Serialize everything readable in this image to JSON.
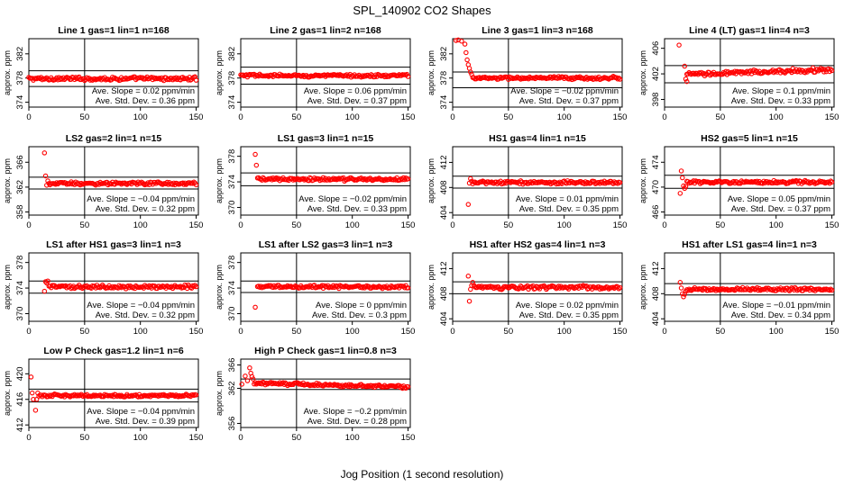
{
  "title": "SPL_140902  CO2 Shapes",
  "xlabel": "Jog Position (1 second resolution)",
  "colors": {
    "points": "#ff0000",
    "axes": "#000000"
  },
  "chart_data": [
    {
      "type": "scatter",
      "title": "Line 1 gas=1 lin=1 n=168",
      "ylabel": "approx. ppm",
      "xlim": [
        0,
        152
      ],
      "ylim": [
        373.2,
        384.5
      ],
      "yticks": [
        374,
        378,
        382
      ],
      "xticks": [
        0,
        50,
        100,
        150
      ],
      "hlines": [
        379.2,
        376.6
      ],
      "vline": 50,
      "points_from": 0,
      "points_to": 150,
      "level": 377.9,
      "noise": 0.35,
      "slope": 0,
      "outliers": [],
      "slope_text": "Ave. Slope =  0.02  ppm/min",
      "sd_text": "Ave. Std. Dev. =  0.36  ppm"
    },
    {
      "type": "scatter",
      "title": "Line 2 gas=1 lin=2 n=168",
      "ylabel": "approx. ppm",
      "xlim": [
        0,
        152
      ],
      "ylim": [
        373.2,
        384.5
      ],
      "yticks": [
        374,
        378,
        382
      ],
      "xticks": [
        0,
        50,
        100,
        150
      ],
      "hlines": [
        379.8,
        377.0
      ],
      "vline": 50,
      "points_from": 0,
      "points_to": 150,
      "level": 378.4,
      "noise": 0.3,
      "slope": 0,
      "outliers": [],
      "slope_text": "Ave. Slope =  0.06  ppm/min",
      "sd_text": "Ave. Std. Dev. =  0.37  ppm"
    },
    {
      "type": "scatter",
      "title": "Line 3 gas=1 lin=3 n=168",
      "ylabel": "approx. ppm",
      "xlim": [
        0,
        152
      ],
      "ylim": [
        373.2,
        384.5
      ],
      "yticks": [
        374,
        378,
        382
      ],
      "xticks": [
        0,
        50,
        100,
        150
      ],
      "hlines": [
        379.0,
        376.4
      ],
      "vline": 50,
      "points_from": 18,
      "points_to": 150,
      "level": 378.0,
      "noise": 0.3,
      "slope": 0,
      "outliers": [
        [
          3,
          384.2
        ],
        [
          5,
          384.3
        ],
        [
          8,
          384.1
        ],
        [
          11,
          383.6
        ],
        [
          12,
          382.2
        ],
        [
          13,
          381.0
        ],
        [
          14,
          380.2
        ],
        [
          15,
          379.6
        ],
        [
          16,
          379.0
        ],
        [
          17,
          378.6
        ]
      ],
      "slope_text": "Ave. Slope =  −0.02  ppm/min",
      "sd_text": "Ave. Std. Dev. =  0.37  ppm"
    },
    {
      "type": "scatter",
      "title": "Line 4 (LT) gas=1 lin=4 n=3",
      "ylabel": "approx. ppm",
      "xlim": [
        0,
        152
      ],
      "ylim": [
        396.8,
        407.5
      ],
      "yticks": [
        398,
        402,
        406
      ],
      "xticks": [
        0,
        50,
        100,
        150
      ],
      "hlines": [
        403.3,
        400.6
      ],
      "vline": 50,
      "points_from": 20,
      "points_to": 150,
      "level": 401.9,
      "noise": 0.4,
      "slope": 0.006,
      "outliers": [
        [
          13,
          406.5
        ],
        [
          18,
          403.2
        ],
        [
          19,
          401.2
        ],
        [
          20,
          400.8
        ]
      ],
      "slope_text": "Ave. Slope =  0.1  ppm/min",
      "sd_text": "Ave. Std. Dev. =  0.33  ppm"
    },
    {
      "type": "scatter",
      "title": "LS2 gas=2 lin=1 n=15",
      "ylabel": "approx. ppm",
      "xlim": [
        0,
        152
      ],
      "ylim": [
        357.5,
        368.5
      ],
      "yticks": [
        358,
        362,
        366
      ],
      "xticks": [
        0,
        50,
        100,
        150
      ],
      "hlines": [
        363.6,
        361.7
      ],
      "vline": 50,
      "points_from": 18,
      "points_to": 150,
      "level": 362.6,
      "noise": 0.3,
      "slope": 0,
      "outliers": [
        [
          14,
          367.5
        ],
        [
          15,
          363.8
        ],
        [
          16,
          362.3
        ],
        [
          17,
          363.0
        ]
      ],
      "slope_text": "Ave. Slope =  −0.04  ppm/min",
      "sd_text": "Ave. Std. Dev. =  0.32  ppm"
    },
    {
      "type": "scatter",
      "title": "LS1 gas=3 lin=1 n=15",
      "ylabel": "approx. ppm",
      "xlim": [
        0,
        152
      ],
      "ylim": [
        368.8,
        379.5
      ],
      "yticks": [
        370,
        374,
        378
      ],
      "xticks": [
        0,
        50,
        100,
        150
      ],
      "hlines": [
        375.4,
        373.4
      ],
      "vline": 50,
      "points_from": 16,
      "points_to": 150,
      "level": 374.4,
      "noise": 0.3,
      "slope": 0,
      "outliers": [
        [
          13,
          378.3
        ],
        [
          14,
          376.6
        ],
        [
          15,
          374.6
        ]
      ],
      "slope_text": "Ave. Slope =  −0.02  ppm/min",
      "sd_text": "Ave. Std. Dev. =  0.33  ppm"
    },
    {
      "type": "scatter",
      "title": "HS1 gas=4 lin=1 n=15",
      "ylabel": "approx. ppm",
      "xlim": [
        0,
        152
      ],
      "ylim": [
        403.6,
        414.5
      ],
      "yticks": [
        404,
        408,
        412
      ],
      "xticks": [
        0,
        50,
        100,
        150
      ],
      "hlines": [
        409.8,
        407.9
      ],
      "vline": 50,
      "points_from": 17,
      "points_to": 150,
      "level": 408.8,
      "noise": 0.3,
      "slope": 0,
      "outliers": [
        [
          14,
          405.3
        ],
        [
          15,
          408.7
        ],
        [
          16,
          409.4
        ]
      ],
      "slope_text": "Ave. Slope =  0.01  ppm/min",
      "sd_text": "Ave. Std. Dev. =  0.35  ppm"
    },
    {
      "type": "scatter",
      "title": "HS2 gas=5 lin=1 n=15",
      "ylabel": "approx. ppm",
      "xlim": [
        0,
        152
      ],
      "ylim": [
        465.5,
        476.5
      ],
      "yticks": [
        466,
        470,
        474
      ],
      "xticks": [
        0,
        50,
        100,
        150
      ],
      "hlines": [
        471.9,
        469.8
      ],
      "vline": 50,
      "points_from": 20,
      "points_to": 150,
      "level": 470.8,
      "noise": 0.3,
      "slope": 0,
      "outliers": [
        [
          14,
          469.0
        ],
        [
          15,
          472.6
        ],
        [
          16,
          471.5
        ],
        [
          17,
          470.2
        ],
        [
          18,
          469.8
        ],
        [
          19,
          470.1
        ]
      ],
      "slope_text": "Ave. Slope =  0.05  ppm/min",
      "sd_text": "Ave. Std. Dev. =  0.37  ppm"
    },
    {
      "type": "scatter",
      "title": "LS1 after HS1 gas=3 lin=1 n=3",
      "ylabel": "approx. ppm",
      "xlim": [
        0,
        152
      ],
      "ylim": [
        368.8,
        379.5
      ],
      "yticks": [
        370,
        374,
        378
      ],
      "xticks": [
        0,
        50,
        100,
        150
      ],
      "hlines": [
        375.1,
        373.2
      ],
      "vline": 50,
      "points_from": 18,
      "points_to": 150,
      "level": 374.2,
      "noise": 0.35,
      "slope": 0,
      "outliers": [
        [
          14,
          373.5
        ],
        [
          15,
          375.0
        ],
        [
          16,
          374.8
        ],
        [
          17,
          375.1
        ]
      ],
      "slope_text": "Ave. Slope =  −0.04  ppm/min",
      "sd_text": "Ave. Std. Dev. =  0.32  ppm"
    },
    {
      "type": "scatter",
      "title": "LS1 after LS2 gas=3 lin=1 n=3",
      "ylabel": "approx. ppm",
      "xlim": [
        0,
        152
      ],
      "ylim": [
        368.8,
        379.5
      ],
      "yticks": [
        370,
        374,
        378
      ],
      "xticks": [
        0,
        50,
        100,
        150
      ],
      "hlines": [
        375.1,
        373.3
      ],
      "vline": 50,
      "points_from": 15,
      "points_to": 150,
      "level": 374.2,
      "noise": 0.3,
      "slope": 0,
      "outliers": [
        [
          13,
          371.0
        ]
      ],
      "slope_text": "Ave. Slope =  0  ppm/min",
      "sd_text": "Ave. Std. Dev. =  0.3  ppm"
    },
    {
      "type": "scatter",
      "title": "HS1 after HS2 gas=4 lin=1 n=3",
      "ylabel": "approx. ppm",
      "xlim": [
        0,
        152
      ],
      "ylim": [
        403.6,
        414.5
      ],
      "yticks": [
        404,
        408,
        412
      ],
      "xticks": [
        0,
        50,
        100,
        150
      ],
      "hlines": [
        409.9,
        408.0
      ],
      "vline": 50,
      "points_from": 19,
      "points_to": 150,
      "level": 409.0,
      "noise": 0.35,
      "slope": 0,
      "outliers": [
        [
          14,
          410.8
        ],
        [
          15,
          406.8
        ],
        [
          16,
          408.7
        ],
        [
          17,
          409.3
        ],
        [
          18,
          409.8
        ]
      ],
      "slope_text": "Ave. Slope =  0.02  ppm/min",
      "sd_text": "Ave. Std. Dev. =  0.35  ppm"
    },
    {
      "type": "scatter",
      "title": "HS1 after LS1 gas=4 lin=1 n=3",
      "ylabel": "approx. ppm",
      "xlim": [
        0,
        152
      ],
      "ylim": [
        403.6,
        414.5
      ],
      "yticks": [
        404,
        408,
        412
      ],
      "xticks": [
        0,
        50,
        100,
        150
      ],
      "hlines": [
        409.6,
        407.8
      ],
      "vline": 50,
      "points_from": 20,
      "points_to": 150,
      "level": 408.7,
      "noise": 0.3,
      "slope": 0,
      "outliers": [
        [
          14,
          409.8
        ],
        [
          15,
          408.9
        ],
        [
          16,
          408.0
        ],
        [
          17,
          407.5
        ],
        [
          18,
          407.9
        ],
        [
          19,
          408.4
        ]
      ],
      "slope_text": "Ave. Slope =  −0.01  ppm/min",
      "sd_text": "Ave. Std. Dev. =  0.34  ppm"
    },
    {
      "type": "scatter",
      "title": "Low P Check gas=1.2 lin=1 n=6",
      "ylabel": "approx. ppm",
      "xlim": [
        0,
        152
      ],
      "ylim": [
        411.6,
        422.3
      ],
      "yticks": [
        412,
        416,
        420
      ],
      "xticks": [
        0,
        50,
        100,
        150
      ],
      "hlines": [
        417.6,
        415.6
      ],
      "vline": 50,
      "points_from": 9,
      "points_to": 150,
      "level": 416.6,
      "noise": 0.25,
      "slope": 0,
      "outliers": [
        [
          2,
          419.5
        ],
        [
          3,
          417.0
        ],
        [
          4,
          416.0
        ],
        [
          6,
          414.3
        ],
        [
          7,
          416.0
        ],
        [
          8,
          417.0
        ]
      ],
      "slope_text": "Ave. Slope =  −0.04  ppm/min",
      "sd_text": "Ave. Std. Dev. =  0.39  ppm"
    },
    {
      "type": "scatter",
      "title": "High P Check gas=1 lin=0.8 n=3",
      "ylabel": "approx. ppm",
      "xlim": [
        0,
        152
      ],
      "ylim": [
        355.3,
        367.0
      ],
      "yticks": [
        356,
        362,
        366
      ],
      "xticks": [
        0,
        50,
        100,
        150
      ],
      "hlines": [
        363.6,
        361.8
      ],
      "vline": 50,
      "points_from": 12,
      "points_to": 150,
      "level": 362.9,
      "noise": 0.3,
      "slope": -0.005,
      "outliers": [
        [
          1,
          362.7
        ],
        [
          4,
          364.1
        ],
        [
          6,
          363.3
        ],
        [
          8,
          365.5
        ],
        [
          9,
          364.6
        ],
        [
          10,
          364.0
        ],
        [
          11,
          363.6
        ]
      ],
      "slope_text": "Ave. Slope =  −0.2  ppm/min",
      "sd_text": "Ave. Std. Dev. =  0.28  ppm"
    }
  ]
}
